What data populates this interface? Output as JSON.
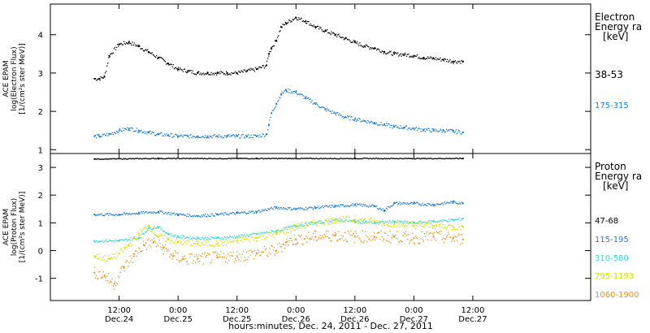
{
  "colors": {
    "axis": "#000000",
    "electron_38_53": "#000000",
    "electron_175_315": "#1e7fd6",
    "proton_47_68": "#000000",
    "proton_115_195": "#1e7fd6",
    "proton_310_580": "#3ad6d6",
    "proton_795_1193": "#d2e000",
    "proton_1060_1900": "#ee8f16"
  },
  "xaxis": {
    "label": "hours:minutes, Dec. 24, 2011 - Dec. 27, 2011",
    "range_hours": [
      -2,
      108
    ],
    "ticks": [
      {
        "h": 12,
        "time": "12:00",
        "date": "Dec.24"
      },
      {
        "h": 24,
        "time": "0:00",
        "date": "Dec.25"
      },
      {
        "h": 36,
        "time": "12:00",
        "date": "Dec.25"
      },
      {
        "h": 48,
        "time": "0:00",
        "date": "Dec.26"
      },
      {
        "h": 60,
        "time": "12:00",
        "date": "Dec.26"
      },
      {
        "h": 72,
        "time": "0:00",
        "date": "Dec.27"
      },
      {
        "h": 84,
        "time": "12:00",
        "date": "Dec.27"
      }
    ]
  },
  "chart_data": [
    {
      "type": "scatter",
      "ylabel": [
        "ACE EPAM",
        "log(Electron Flux)",
        "[1/(cm²s ster MeV)]"
      ],
      "ylim": [
        0.9,
        4.8
      ],
      "yticks": [
        1,
        2,
        3,
        4
      ],
      "legend": {
        "title": [
          "Electron",
          "Energy ra",
          "[keV]"
        ],
        "placement": "right"
      },
      "x_units": "hours since Dec. 24, 2011 00:00",
      "series": [
        {
          "name": "38-53",
          "color_key": "electron_38_53",
          "x": [
            7,
            8,
            9,
            10,
            12,
            14,
            16,
            18,
            20,
            22,
            24,
            26,
            28,
            30,
            32,
            34,
            36,
            38,
            40,
            42,
            42.5,
            43,
            44,
            45,
            46,
            48,
            50,
            52,
            54,
            56,
            58,
            60,
            62,
            64,
            66,
            68,
            70,
            72,
            74,
            76,
            78,
            80,
            82
          ],
          "y": [
            2.85,
            2.85,
            2.9,
            3.45,
            3.75,
            3.8,
            3.7,
            3.55,
            3.4,
            3.25,
            3.1,
            3.05,
            3.0,
            3.0,
            3.0,
            3.0,
            3.0,
            3.05,
            3.1,
            3.2,
            3.5,
            3.65,
            3.85,
            4.2,
            4.3,
            4.45,
            4.35,
            4.2,
            4.1,
            4.0,
            3.9,
            3.8,
            3.7,
            3.65,
            3.55,
            3.5,
            3.48,
            3.45,
            3.4,
            3.38,
            3.35,
            3.3,
            3.3
          ]
        },
        {
          "name": "175-315",
          "color_key": "electron_175_315",
          "x": [
            7,
            8,
            10,
            12,
            14,
            16,
            18,
            20,
            22,
            24,
            26,
            28,
            30,
            32,
            34,
            36,
            38,
            40,
            42,
            42.5,
            43,
            44,
            45,
            46,
            48,
            50,
            52,
            54,
            56,
            58,
            60,
            62,
            64,
            66,
            68,
            70,
            72,
            74,
            76,
            78,
            80,
            82
          ],
          "y": [
            1.35,
            1.35,
            1.4,
            1.5,
            1.55,
            1.5,
            1.45,
            1.4,
            1.38,
            1.35,
            1.35,
            1.35,
            1.35,
            1.35,
            1.35,
            1.35,
            1.35,
            1.35,
            1.4,
            1.65,
            1.95,
            2.2,
            2.45,
            2.55,
            2.5,
            2.35,
            2.2,
            2.05,
            1.95,
            1.85,
            1.8,
            1.75,
            1.7,
            1.65,
            1.6,
            1.58,
            1.55,
            1.52,
            1.5,
            1.5,
            1.48,
            1.45
          ]
        }
      ]
    },
    {
      "type": "scatter",
      "ylabel": [
        "ACE EPAM",
        "log(Proton Flux)",
        "[1/(cm²s ster MeV)]"
      ],
      "ylim": [
        -1.8,
        3.5
      ],
      "yticks": [
        -1,
        0,
        1,
        2,
        3
      ],
      "legend": {
        "title": [
          "Proton",
          "Energy ra",
          "[keV]"
        ],
        "placement": "right"
      },
      "x_units": "hours since Dec. 24, 2011 00:00",
      "series": [
        {
          "name": "47-68",
          "color_key": "proton_47_68",
          "x": [
            7,
            20,
            40,
            60,
            82
          ],
          "y": [
            3.3,
            3.32,
            3.32,
            3.32,
            3.32
          ]
        },
        {
          "name": "115-195",
          "color_key": "proton_115_195",
          "x": [
            7,
            12,
            16,
            20,
            24,
            28,
            32,
            36,
            40,
            44,
            48,
            52,
            56,
            60,
            64,
            66,
            68,
            72,
            76,
            80,
            82
          ],
          "y": [
            1.3,
            1.3,
            1.35,
            1.4,
            1.3,
            1.25,
            1.3,
            1.35,
            1.4,
            1.55,
            1.5,
            1.55,
            1.6,
            1.65,
            1.6,
            1.45,
            1.7,
            1.7,
            1.65,
            1.75,
            1.7
          ]
        },
        {
          "name": "310-580",
          "color_key": "proton_310_580",
          "x": [
            7,
            12,
            16,
            18,
            20,
            22,
            24,
            28,
            32,
            36,
            40,
            44,
            48,
            52,
            56,
            60,
            64,
            68,
            72,
            76,
            80,
            82
          ],
          "y": [
            0.35,
            0.35,
            0.45,
            0.8,
            0.85,
            0.6,
            0.5,
            0.45,
            0.45,
            0.5,
            0.6,
            0.7,
            0.9,
            1.0,
            1.1,
            1.05,
            1.0,
            1.05,
            1.0,
            1.05,
            1.1,
            1.15
          ]
        },
        {
          "name": "795-1193",
          "color_key": "proton_795_1193",
          "x": [
            7,
            10,
            12,
            14,
            16,
            18,
            20,
            22,
            24,
            28,
            32,
            36,
            40,
            44,
            48,
            52,
            56,
            60,
            64,
            68,
            72,
            76,
            80,
            82
          ],
          "y": [
            -0.2,
            -0.3,
            -0.1,
            0.2,
            0.6,
            0.9,
            0.5,
            0.4,
            0.3,
            0.25,
            0.25,
            0.35,
            0.45,
            0.6,
            0.85,
            1.0,
            1.1,
            1.1,
            1.05,
            0.95,
            0.9,
            0.9,
            0.85,
            0.85
          ]
        },
        {
          "name": "1060-1900",
          "color_key": "proton_1060_1900",
          "x": [
            7,
            9,
            11,
            13,
            15,
            17,
            19,
            21,
            23,
            25,
            28,
            32,
            36,
            40,
            44,
            46,
            48,
            52,
            56,
            60,
            64,
            68,
            72,
            76,
            80,
            82
          ],
          "y": [
            -0.8,
            -0.9,
            -1.2,
            -0.6,
            -0.2,
            0.2,
            0.3,
            0.1,
            -0.2,
            -0.3,
            -0.3,
            -0.25,
            -0.2,
            -0.1,
            0.0,
            0.3,
            0.4,
            0.5,
            0.55,
            0.5,
            0.5,
            0.5,
            0.45,
            0.5,
            0.45,
            0.4
          ]
        }
      ]
    }
  ]
}
